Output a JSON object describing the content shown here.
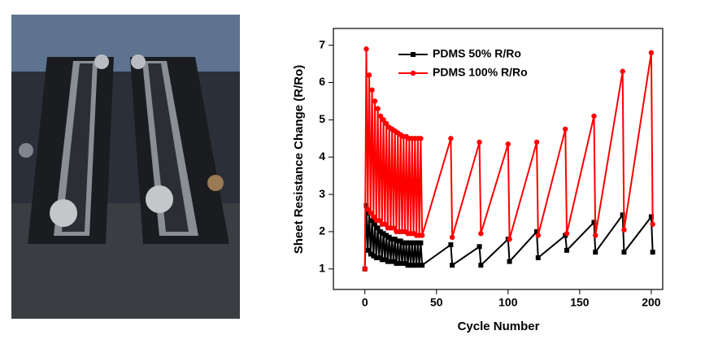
{
  "chart_data": {
    "type": "line",
    "xlabel": "Cycle Number",
    "ylabel": "Sheet Resistance Change (R/Ro)",
    "x": [
      0,
      1,
      2,
      3,
      4,
      5,
      6,
      7,
      8,
      9,
      10,
      11,
      12,
      13,
      14,
      15,
      16,
      17,
      18,
      19,
      20,
      21,
      22,
      23,
      24,
      25,
      26,
      27,
      28,
      29,
      30,
      31,
      32,
      33,
      34,
      35,
      36,
      37,
      38,
      39,
      40,
      60,
      61,
      80,
      81,
      100,
      101,
      120,
      121,
      140,
      141,
      160,
      161,
      180,
      181,
      200,
      201
    ],
    "series": [
      {
        "name": "PDMS 50% R/Ro",
        "color": "#000000",
        "marker": "square",
        "values": [
          1.0,
          2.7,
          1.5,
          2.5,
          1.4,
          2.3,
          1.35,
          2.2,
          1.3,
          2.1,
          1.3,
          2.0,
          1.25,
          1.95,
          1.25,
          1.9,
          1.2,
          1.85,
          1.2,
          1.8,
          1.2,
          1.8,
          1.15,
          1.75,
          1.15,
          1.75,
          1.15,
          1.7,
          1.15,
          1.7,
          1.1,
          1.7,
          1.1,
          1.7,
          1.1,
          1.7,
          1.1,
          1.7,
          1.1,
          1.7,
          1.1,
          1.65,
          1.1,
          1.6,
          1.1,
          1.8,
          1.2,
          2.0,
          1.3,
          1.9,
          1.5,
          2.25,
          1.45,
          2.45,
          1.45,
          2.4,
          1.45
        ]
      },
      {
        "name": "PDMS 100% R/Ro",
        "color": "#ff0000",
        "marker": "circle",
        "values": [
          1.0,
          6.9,
          2.6,
          6.2,
          2.5,
          5.8,
          2.4,
          5.5,
          2.3,
          5.3,
          2.3,
          5.1,
          2.2,
          5.0,
          2.2,
          4.9,
          2.1,
          4.8,
          2.1,
          4.75,
          2.1,
          4.7,
          2.0,
          4.65,
          2.0,
          4.6,
          2.0,
          4.55,
          2.0,
          4.55,
          1.95,
          4.5,
          1.95,
          4.5,
          1.95,
          4.5,
          1.9,
          4.5,
          1.9,
          4.5,
          1.9,
          4.5,
          1.85,
          4.4,
          1.95,
          4.35,
          1.8,
          4.4,
          1.9,
          4.75,
          1.95,
          5.1,
          1.9,
          6.3,
          2.05,
          6.8,
          2.2
        ]
      }
    ],
    "xlim": [
      -22,
      208
    ],
    "xticks": [
      0,
      50,
      100,
      150,
      200
    ],
    "ylim": [
      0.45,
      7.45
    ],
    "yticks": [
      1,
      2,
      3,
      4,
      5,
      6,
      7
    ],
    "legend": "upper left"
  }
}
